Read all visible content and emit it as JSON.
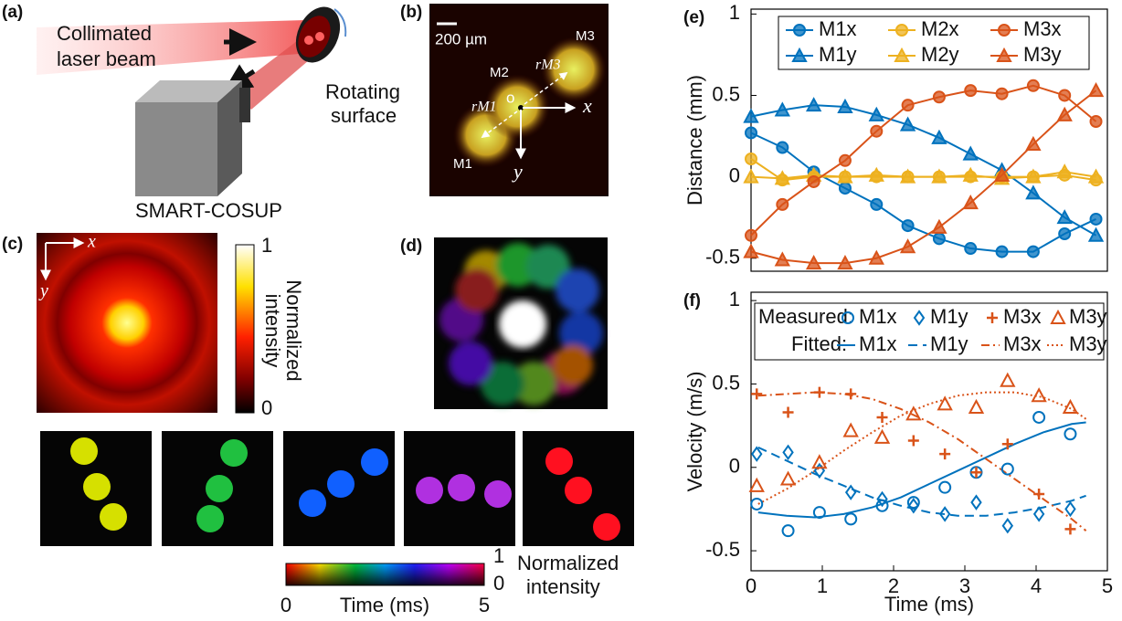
{
  "panels": {
    "a": {
      "label": "(a)",
      "beam": [
        "Collimated",
        "laser beam"
      ],
      "surface": [
        "Rotating",
        "surface"
      ],
      "camera": "SMART-COSUP"
    },
    "b": {
      "label": "(b)",
      "scale": "200 µm",
      "markers": [
        "M1",
        "M2",
        "M3"
      ],
      "origin": "o",
      "x": "x",
      "y": "y",
      "radii": [
        "rM1",
        "rM3"
      ]
    },
    "c": {
      "label": "(c)",
      "x": "x",
      "y": "y",
      "colorbar_max": "1",
      "colorbar_min": "0",
      "colorbar_title": [
        "Normalized",
        "intensity"
      ]
    },
    "d": {
      "label": "(d)"
    },
    "time_colorbar": {
      "max": "1",
      "min": "0",
      "title": [
        "Normalized",
        "intensity"
      ],
      "start": "0",
      "end": "5",
      "axis": "Time (ms)"
    }
  },
  "chart_data": [
    {
      "type": "line",
      "panel_label": "(e)",
      "ylabel": "Distance (mm)",
      "x": [
        0,
        0.44,
        0.88,
        1.32,
        1.76,
        2.2,
        2.64,
        3.08,
        3.52,
        3.96,
        4.4,
        4.84
      ],
      "xlim": [
        0,
        5
      ],
      "ylim": [
        -0.58,
        1.03
      ],
      "yticks": [
        -0.5,
        0,
        0.5,
        1
      ],
      "series": [
        {
          "name": "M1x",
          "color": "#0072bd",
          "marker": "circle",
          "values": [
            0.27,
            0.18,
            0.03,
            -0.07,
            -0.17,
            -0.3,
            -0.38,
            -0.44,
            -0.46,
            -0.46,
            -0.35,
            -0.26
          ]
        },
        {
          "name": "M1y",
          "color": "#0072bd",
          "marker": "triangle",
          "values": [
            0.37,
            0.41,
            0.44,
            0.43,
            0.38,
            0.32,
            0.24,
            0.14,
            0.04,
            -0.1,
            -0.25,
            -0.36
          ]
        },
        {
          "name": "M2x",
          "color": "#edb120",
          "marker": "circle",
          "values": [
            0.11,
            -0.02,
            0,
            0,
            0,
            0,
            0,
            0,
            0,
            0,
            0.01,
            -0.02
          ]
        },
        {
          "name": "M2y",
          "color": "#edb120",
          "marker": "triangle",
          "values": [
            0,
            -0.01,
            0.01,
            0,
            0.01,
            0,
            0,
            0.01,
            -0.01,
            0,
            0.03,
            0
          ]
        },
        {
          "name": "M3x",
          "color": "#d95319",
          "marker": "circle",
          "values": [
            -0.36,
            -0.17,
            -0.03,
            0.1,
            0.28,
            0.44,
            0.49,
            0.53,
            0.51,
            0.56,
            0.5,
            0.34
          ]
        },
        {
          "name": "M3y",
          "color": "#d95319",
          "marker": "triangle",
          "values": [
            -0.46,
            -0.51,
            -0.53,
            -0.53,
            -0.5,
            -0.43,
            -0.31,
            -0.16,
            0.01,
            0.2,
            0.38,
            0.53
          ]
        }
      ]
    },
    {
      "type": "scatter",
      "panel_label": "(f)",
      "ylabel": "Velocity (m/s)",
      "xlabel": "Time (ms)",
      "x": [
        0.08,
        0.52,
        0.96,
        1.4,
        1.84,
        2.28,
        2.72,
        3.16,
        3.6,
        4.04,
        4.48
      ],
      "xlim": [
        0,
        5
      ],
      "xticks": [
        0,
        1,
        2,
        3,
        4,
        5
      ],
      "ylim": [
        -0.62,
        1.05
      ],
      "yticks": [
        -0.5,
        0,
        0.5,
        1
      ],
      "legend_groups": [
        "Measured:",
        "Fitted:"
      ],
      "series": [
        {
          "name": "M1x",
          "color": "#0072bd",
          "marker": "circle",
          "values": [
            -0.22,
            -0.38,
            -0.27,
            -0.31,
            -0.23,
            -0.21,
            -0.12,
            -0.03,
            -0.01,
            0.3,
            0.2
          ]
        },
        {
          "name": "M1y",
          "color": "#0072bd",
          "marker": "diamond",
          "values": [
            0.08,
            0.09,
            -0.02,
            -0.15,
            -0.19,
            -0.23,
            -0.28,
            -0.21,
            -0.35,
            -0.28,
            -0.25
          ]
        },
        {
          "name": "M3x",
          "color": "#d95319",
          "marker": "plus",
          "values": [
            0.44,
            0.33,
            0.45,
            0.44,
            0.3,
            0.16,
            0.08,
            -0.03,
            0.14,
            -0.16,
            -0.37
          ]
        },
        {
          "name": "M3y",
          "color": "#d95319",
          "marker": "triangle",
          "values": [
            -0.11,
            -0.07,
            0.03,
            0.22,
            0.18,
            0.32,
            0.38,
            0.36,
            0.52,
            0.43,
            0.36
          ]
        }
      ],
      "fit_x": [
        0.1,
        0.5,
        0.9,
        1.3,
        1.7,
        2.1,
        2.5,
        2.9,
        3.3,
        3.7,
        4.1,
        4.5,
        4.7
      ],
      "fit_series": [
        {
          "name": "M1x",
          "color": "#0072bd",
          "dash": "solid",
          "values": [
            -0.27,
            -0.29,
            -0.3,
            -0.28,
            -0.24,
            -0.18,
            -0.1,
            -0.02,
            0.06,
            0.14,
            0.21,
            0.26,
            0.27
          ]
        },
        {
          "name": "M1y",
          "color": "#0072bd",
          "dash": "dashed",
          "values": [
            0.12,
            0.04,
            -0.04,
            -0.11,
            -0.18,
            -0.23,
            -0.27,
            -0.29,
            -0.29,
            -0.27,
            -0.24,
            -0.2,
            -0.17
          ]
        },
        {
          "name": "M3x",
          "color": "#d95319",
          "dash": "dashdot",
          "values": [
            0.43,
            0.44,
            0.45,
            0.44,
            0.41,
            0.35,
            0.27,
            0.17,
            0.05,
            -0.07,
            -0.19,
            -0.31,
            -0.38
          ]
        },
        {
          "name": "M3y",
          "color": "#d95319",
          "dash": "dotted",
          "values": [
            -0.22,
            -0.13,
            -0.02,
            0.1,
            0.21,
            0.31,
            0.38,
            0.43,
            0.45,
            0.45,
            0.42,
            0.35,
            0.29
          ]
        }
      ]
    }
  ]
}
